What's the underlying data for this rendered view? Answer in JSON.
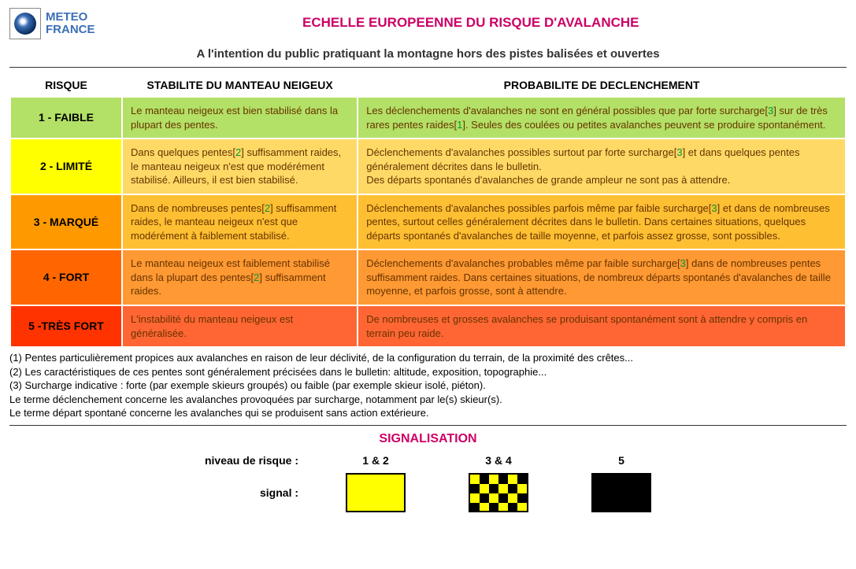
{
  "logo": {
    "line1": "METEO",
    "line2": "FRANCE"
  },
  "title": "ECHELLE EUROPEENNE DU RISQUE D'AVALANCHE",
  "subtitle": "A l'intention du public pratiquant la montagne hors des pistes balisées et ouvertes",
  "headers": {
    "risk": "RISQUE",
    "stability": "STABILITE DU MANTEAU NEIGEUX",
    "prob": "PROBABILITE DE DECLENCHEMENT"
  },
  "rows": [
    {
      "level": "1 - FAIBLE",
      "riskColor": "#b3e066",
      "cellColor": "#b3e066",
      "stability": "Le manteau neigeux est bien stabilisé dans la plupart des pentes.",
      "prob_a": "Les déclenchements d'avalanches ne sont en général possibles que par forte surcharge[",
      "prob_ref1": "3",
      "prob_b": "] sur de très rares pentes raides[",
      "prob_ref2": "1",
      "prob_c": "]. Seules des coulées ou petites avalanches peuvent se produire spontanément."
    },
    {
      "level": "2 - LIMITÉ",
      "riskColor": "#ffff00",
      "cellColor": "#ffd966",
      "stab_a": "Dans quelques pentes[",
      "stab_ref": "2",
      "stab_b": "] suffisamment raides, le manteau neigeux n'est que modérément stabilisé. Ailleurs, il est bien stabilisé.",
      "prob_a": "Déclenchements d'avalanches possibles surtout par forte surcharge[",
      "prob_ref1": "3",
      "prob_b": "] et dans quelques pentes généralement décrites dans le bulletin.",
      "prob_c": "Des départs spontanés d'avalanches de grande ampleur ne sont pas à attendre."
    },
    {
      "level": "3 - MARQUÉ",
      "riskColor": "#ff9900",
      "cellColor": "#ffbf33",
      "stab_a": "Dans de nombreuses pentes[",
      "stab_ref": "2",
      "stab_b": "] suffisamment raides, le manteau neigeux n'est que modérément à faiblement stabilisé.",
      "prob_a": "Déclenchements d'avalanches possibles parfois même par faible surcharge[",
      "prob_ref1": "3",
      "prob_b": "] et dans de nombreuses pentes, surtout celles généralement décrites dans le bulletin. Dans certaines situations, quelques départs spontanés d'avalanches de taille moyenne, et parfois assez grosse, sont possibles."
    },
    {
      "level": "4 - FORT",
      "riskColor": "#ff6600",
      "cellColor": "#ff9933",
      "stab_a": "Le manteau neigeux est faiblement stabilisé dans la plupart des pentes[",
      "stab_ref": "2",
      "stab_b": "] suffisamment raides.",
      "prob_a": "Déclenchements d'avalanches probables même par faible surcharge[",
      "prob_ref1": "3",
      "prob_b": "] dans de nombreuses pentes suffisamment raides. Dans certaines situations, de nombreux départs spontanés d'avalanches de taille moyenne, et parfois grosse, sont à attendre."
    },
    {
      "level": "5 -TRÈS FORT",
      "riskColor": "#ff3300",
      "cellColor": "#ff6633",
      "stability": "L'instabilité du manteau neigeux est généralisée.",
      "prob": "De nombreuses et grosses avalanches se produisant spontanément sont à attendre y compris en terrain peu raide."
    }
  ],
  "footnotes": [
    "(1) Pentes particulièrement propices aux avalanches en raison de leur déclivité, de la configuration du terrain, de la proximité des crêtes...",
    "(2) Les caractéristiques de ces pentes sont généralement précisées dans le bulletin: altitude, exposition, topographie...",
    "(3) Surcharge indicative : forte (par exemple skieurs groupés) ou faible (par exemple skieur isolé, piéton).",
    "Le terme déclenchement concerne les avalanches provoquées par surcharge, notamment par le(s) skieur(s).",
    "Le terme départ spontané concerne les avalanches qui se produisent sans action extérieure."
  ],
  "signal": {
    "title": "SIGNALISATION",
    "row1label": "niveau de risque :",
    "row2label": "signal :",
    "levels": [
      "1 & 2",
      "3 & 4",
      "5"
    ]
  }
}
